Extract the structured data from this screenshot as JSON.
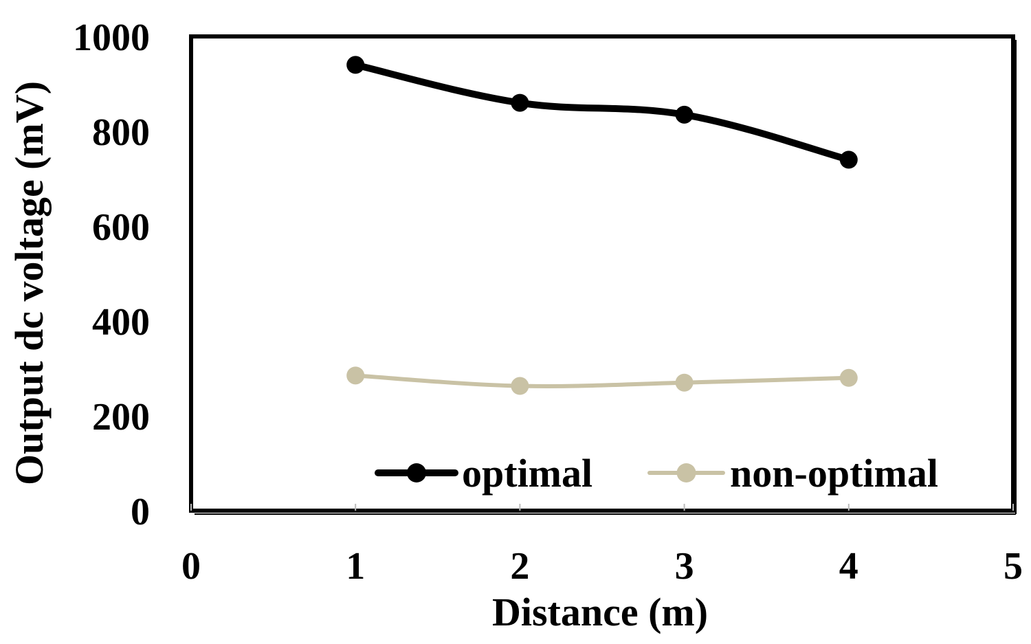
{
  "chart_data": {
    "type": "line",
    "title": "",
    "xlabel": "Distance (m)",
    "ylabel": "Output dc voltage (mV)",
    "xlim": [
      0,
      5
    ],
    "ylim": [
      0,
      1000
    ],
    "x_ticks": [
      0,
      1,
      2,
      3,
      4,
      5
    ],
    "y_ticks": [
      0,
      200,
      400,
      600,
      800,
      1000
    ],
    "grid": false,
    "legend_position": "bottom-right",
    "x": [
      1,
      2,
      3,
      4
    ],
    "series": [
      {
        "name": "optimal",
        "color": "#000000",
        "values": [
          940,
          860,
          835,
          740
        ]
      },
      {
        "name": "non-optimal",
        "color": "#c9c2a5",
        "values": [
          285,
          263,
          270,
          280
        ]
      }
    ]
  }
}
